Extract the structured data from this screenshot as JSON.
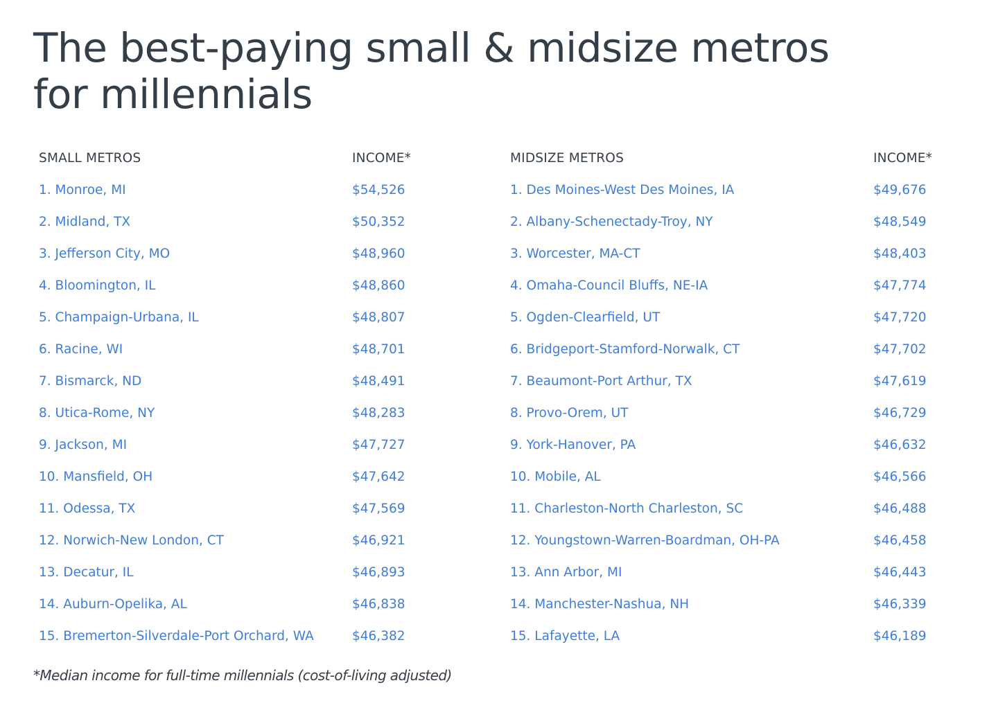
{
  "title": "The best-paying small & midsize metros for millennials",
  "table": {
    "headers": {
      "small_metros": "SMALL METROS",
      "small_income": "INCOME*",
      "midsize_metros": "MIDSIZE METROS",
      "midsize_income": "INCOME*"
    },
    "rows": [
      {
        "small": "1. Monroe, MI",
        "small_income": "$54,526",
        "midsize": "1. Des Moines-West Des Moines, IA",
        "midsize_income": "$49,676"
      },
      {
        "small": "2. Midland, TX",
        "small_income": "$50,352",
        "midsize": "2. Albany-Schenectady-Troy, NY",
        "midsize_income": "$48,549"
      },
      {
        "small": "3. Jefferson City, MO",
        "small_income": "$48,960",
        "midsize": "3. Worcester, MA-CT",
        "midsize_income": "$48,403"
      },
      {
        "small": "4. Bloomington, IL",
        "small_income": "$48,860",
        "midsize": "4. Omaha-Council Bluffs, NE-IA",
        "midsize_income": "$47,774"
      },
      {
        "small": "5. Champaign-Urbana, IL",
        "small_income": "$48,807",
        "midsize": "5. Ogden-Clearfield, UT",
        "midsize_income": "$47,720"
      },
      {
        "small": "6. Racine, WI",
        "small_income": "$48,701",
        "midsize": "6. Bridgeport-Stamford-Norwalk, CT",
        "midsize_income": "$47,702"
      },
      {
        "small": "7. Bismarck, ND",
        "small_income": "$48,491",
        "midsize": "7. Beaumont-Port Arthur, TX",
        "midsize_income": "$47,619"
      },
      {
        "small": "8. Utica-Rome, NY",
        "small_income": "$48,283",
        "midsize": "8. Provo-Orem, UT",
        "midsize_income": "$46,729"
      },
      {
        "small": "9. Jackson, MI",
        "small_income": "$47,727",
        "midsize": "9. York-Hanover, PA",
        "midsize_income": "$46,632"
      },
      {
        "small": "10. Mansfield, OH",
        "small_income": "$47,642",
        "midsize": "10. Mobile, AL",
        "midsize_income": "$46,566"
      },
      {
        "small": "11. Odessa, TX",
        "small_income": "$47,569",
        "midsize": "11. Charleston-North Charleston, SC",
        "midsize_income": "$46,488"
      },
      {
        "small": "12. Norwich-New London, CT",
        "small_income": "$46,921",
        "midsize": "12. Youngstown-Warren-Boardman, OH-PA",
        "midsize_income": "$46,458"
      },
      {
        "small": "13. Decatur, IL",
        "small_income": "$46,893",
        "midsize": "13. Ann Arbor, MI",
        "midsize_income": "$46,443"
      },
      {
        "small": "14. Auburn-Opelika, AL",
        "small_income": "$46,838",
        "midsize": "14. Manchester-Nashua, NH",
        "midsize_income": "$46,339"
      },
      {
        "small": "15. Bremerton-Silverdale-Port Orchard, WA",
        "small_income": "$46,382",
        "midsize": "15. Lafayette, LA",
        "midsize_income": "$46,189"
      }
    ]
  },
  "footnote": "*Median income for full-time millennials (cost-of-living adjusted)",
  "colors": {
    "text_dark": "#343e49",
    "link_blue": "#3f7ed8",
    "background": "#ffffff"
  }
}
